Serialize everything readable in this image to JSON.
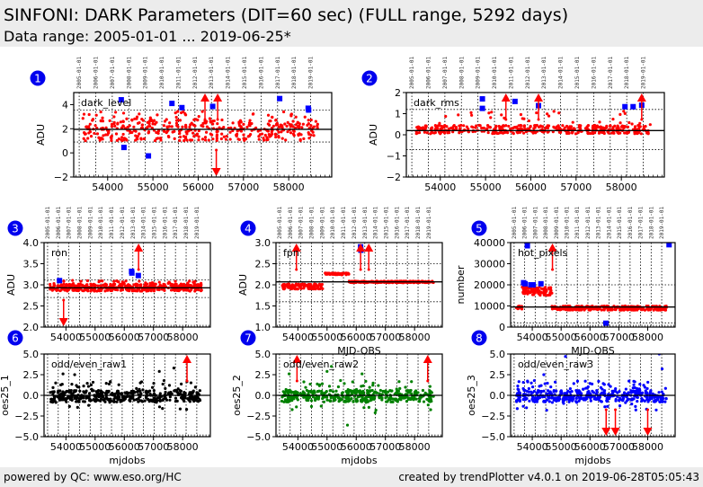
{
  "header": {
    "title": "SINFONI: DARK Parameters (DIT=60 sec) (FULL range, 5292 days)",
    "subtitle": "Data range: 2005-01-01 ... 2019-06-25*"
  },
  "footer": {
    "left": "powered by QC: www.eso.org/HC",
    "right": "created by trendPlotter v4.0.1 on 2019-06-28T05:05:43"
  },
  "colors": {
    "red": "#ff0000",
    "blue": "#0000ff",
    "black": "#000000",
    "green": "#008000",
    "badge": "#0000ee",
    "header_bg": "#ececec"
  },
  "chart_data": [
    {
      "id": 1,
      "type": "scatter",
      "label": "dark_level",
      "ylabel": "ADU",
      "xlabel": "",
      "ylim": [
        -2,
        5
      ],
      "yticks": [
        -2,
        0,
        2,
        4
      ],
      "xlim": [
        53250,
        58950
      ],
      "xticks": [
        54000,
        55000,
        56000,
        57000,
        58000
      ],
      "xtick_labels": [
        "54000",
        "55000",
        "56000",
        "57000",
        "58000"
      ],
      "top_dates": [
        "2005-01-01",
        "2006-01-01",
        "2007-01-01",
        "2008-01-01",
        "2009-01-01",
        "2010-01-01",
        "2011-01-01",
        "2012-01-01",
        "2013-01-01",
        "2014-01-01",
        "2015-01-01",
        "2016-01-01",
        "2017-01-01",
        "2018-01-01",
        "2019-01-01"
      ],
      "mean": 1.95,
      "limits": [
        0.9,
        3.55
      ],
      "point_color": "red",
      "band": [
        1.0,
        2.8
      ],
      "xrange": [
        53450,
        58650
      ],
      "outliers": [
        [
          54300,
          4.4
        ],
        [
          54360,
          0.45
        ],
        [
          54900,
          -0.25
        ],
        [
          55420,
          4.1
        ],
        [
          55640,
          3.75
        ],
        [
          56320,
          3.85
        ],
        [
          57800,
          4.5
        ],
        [
          58430,
          3.7
        ],
        [
          58440,
          3.55
        ]
      ],
      "arrows_up": [
        56150,
        56430
      ],
      "arrows_down": [
        56400
      ]
    },
    {
      "id": 2,
      "type": "scatter",
      "label": "dark_rms",
      "ylabel": "ADU",
      "xlabel": "",
      "ylim": [
        -2,
        2
      ],
      "yticks": [
        -2,
        -1,
        0,
        1,
        2
      ],
      "xlim": [
        53250,
        58950
      ],
      "xticks": [
        54000,
        55000,
        56000,
        57000,
        58000
      ],
      "xtick_labels": [
        "54000",
        "55000",
        "56000",
        "57000",
        "58000"
      ],
      "top_dates": [
        "2005-01-01",
        "2006-01-01",
        "2007-01-01",
        "2008-01-01",
        "2009-01-01",
        "2010-01-01",
        "2011-01-01",
        "2012-01-01",
        "2013-01-01",
        "2014-01-01",
        "2015-01-01",
        "2016-01-01",
        "2017-01-01",
        "2018-01-01",
        "2019-01-01"
      ],
      "mean": 0.2,
      "limits": [
        -0.7,
        1.2
      ],
      "point_color": "red",
      "band": [
        0.05,
        0.45
      ],
      "xrange": [
        53450,
        58650
      ],
      "outliers": [
        [
          54930,
          1.7
        ],
        [
          54930,
          1.25
        ],
        [
          55650,
          1.58
        ],
        [
          56170,
          1.38
        ],
        [
          58080,
          1.33
        ],
        [
          58260,
          1.33
        ],
        [
          58450,
          1.4
        ]
      ],
      "arrows_up": [
        55450,
        56170,
        58450
      ],
      "arrows_down": []
    },
    {
      "id": 3,
      "type": "scatter",
      "label": "ron",
      "ylabel": "ADU",
      "xlabel": "",
      "ylim": [
        2.0,
        4.0
      ],
      "yticks": [
        2.0,
        2.5,
        3.0,
        3.5,
        4.0
      ],
      "xlim": [
        53250,
        58950
      ],
      "xticks": [
        54000,
        55000,
        56000,
        57000,
        58000
      ],
      "xtick_labels": [
        "54000",
        "55000",
        "56000",
        "57000",
        "58000"
      ],
      "top_dates": [
        "2005-01-01",
        "2006-01-01",
        "2007-01-01",
        "2008-01-01",
        "2009-01-01",
        "2010-01-01",
        "2011-01-01",
        "2012-01-01",
        "2013-01-01",
        "2014-01-01",
        "2015-01-01",
        "2016-01-01",
        "2017-01-01",
        "2018-01-01",
        "2019-01-01"
      ],
      "mean": 2.93,
      "limits": [
        2.7,
        3.12
      ],
      "point_color": "red",
      "band": [
        2.85,
        3.02
      ],
      "xrange": [
        53450,
        58650
      ],
      "outliers": [
        [
          53780,
          3.1
        ],
        [
          56250,
          3.32
        ],
        [
          56260,
          3.28
        ],
        [
          56480,
          3.22
        ]
      ],
      "arrows_up": [
        56490
      ],
      "arrows_down": [
        53920
      ]
    },
    {
      "id": 4,
      "type": "scatter",
      "label": "fpn",
      "ylabel": "ADU",
      "xlabel": "MJD-OBS",
      "ylim": [
        1.0,
        3.0
      ],
      "yticks": [
        1.0,
        1.5,
        2.0,
        2.5,
        3.0
      ],
      "xlim": [
        53250,
        58950
      ],
      "xticks": [
        54000,
        55000,
        56000,
        57000,
        58000
      ],
      "xtick_labels": [
        "54000",
        "55000",
        "56000",
        "57000",
        "58000"
      ],
      "top_dates": [
        "2005-01-01",
        "2006-01-01",
        "2007-01-01",
        "2008-01-01",
        "2009-01-01",
        "2010-01-01",
        "2011-01-01",
        "2012-01-01",
        "2013-01-01",
        "2014-01-01",
        "2015-01-01",
        "2016-01-01",
        "2017-01-01",
        "2018-01-01",
        "2019-01-01"
      ],
      "mean": 2.07,
      "limits": [
        1.6,
        2.5
      ],
      "point_color": "red",
      "segments": [
        {
          "x": [
            53450,
            54850
          ],
          "y": [
            1.9,
            2.02
          ]
        },
        {
          "x": [
            54900,
            55750
          ],
          "y": [
            2.24,
            2.28
          ]
        },
        {
          "x": [
            55750,
            58650
          ],
          "y": [
            2.05,
            2.09
          ]
        }
      ],
      "outliers": [
        [
          56150,
          2.9
        ],
        [
          56160,
          2.82
        ]
      ],
      "arrows_up": [
        53950,
        56150,
        56430
      ],
      "arrows_down": []
    },
    {
      "id": 5,
      "type": "scatter",
      "label": "hot_pixels",
      "ylabel": "number",
      "xlabel": "MJD-OBS",
      "ylim": [
        0,
        40000
      ],
      "yticks": [
        0,
        10000,
        20000,
        30000,
        40000
      ],
      "xlim": [
        53250,
        58950
      ],
      "xticks": [
        54000,
        55000,
        56000,
        57000,
        58000
      ],
      "xtick_labels": [
        "54000",
        "55000",
        "56000",
        "57000",
        "58000"
      ],
      "top_dates": [
        "2005-01-01",
        "2006-01-01",
        "2007-01-01",
        "2008-01-01",
        "2009-01-01",
        "2010-01-01",
        "2011-01-01",
        "2012-01-01",
        "2013-01-01",
        "2014-01-01",
        "2015-01-01",
        "2016-01-01",
        "2017-01-01",
        "2018-01-01",
        "2019-01-01"
      ],
      "mean": 9500,
      "limits": [
        2000,
        20000
      ],
      "point_color": "red",
      "segments": [
        {
          "x": [
            53450,
            53650
          ],
          "y": [
            8500,
            10000
          ]
        },
        {
          "x": [
            53650,
            54680
          ],
          "y": [
            15000,
            19000
          ]
        },
        {
          "x": [
            54680,
            58650
          ],
          "y": [
            8000,
            10000
          ]
        }
      ],
      "outliers": [
        [
          53700,
          21000
        ],
        [
          53750,
          20500
        ],
        [
          53830,
          38500
        ],
        [
          53950,
          20000
        ],
        [
          54030,
          20000
        ],
        [
          54300,
          20500
        ],
        [
          56550,
          1800
        ],
        [
          58740,
          39000
        ]
      ],
      "arrows_up": [
        54700
      ],
      "arrows_down": []
    },
    {
      "id": 6,
      "type": "scatter",
      "label": "odd/even_raw1",
      "ylabel": "oes25_1",
      "xlabel": "mjdobs",
      "ylim": [
        -5.0,
        5.0
      ],
      "yticks": [
        -5.0,
        -2.5,
        0.0,
        2.5,
        5.0
      ],
      "xlim": [
        53250,
        58950
      ],
      "xticks": [
        54000,
        55000,
        56000,
        57000,
        58000
      ],
      "xtick_labels": [
        "54000",
        "55000",
        "56000",
        "57000",
        "58000"
      ],
      "top_dates": [],
      "mean": 0.0,
      "limits": null,
      "point_color": "black",
      "band": [
        -0.8,
        0.6
      ],
      "xrange": [
        53450,
        58650
      ],
      "scatter_extra": 1.6,
      "outliers": [
        [
          53900,
          2.6
        ],
        [
          54300,
          2.5
        ],
        [
          57200,
          2.9
        ],
        [
          57700,
          3.3
        ],
        [
          54400,
          -1.45
        ]
      ],
      "arrows_up": [
        58150
      ],
      "arrows_down": []
    },
    {
      "id": 7,
      "type": "scatter",
      "label": "odd/even_raw2",
      "ylabel": "oes25_2",
      "xlabel": "mjdobs",
      "ylim": [
        -5.0,
        5.0
      ],
      "yticks": [
        -5.0,
        -2.5,
        0.0,
        2.5,
        5.0
      ],
      "xlim": [
        53250,
        58950
      ],
      "xticks": [
        54000,
        55000,
        56000,
        57000,
        58000
      ],
      "xtick_labels": [
        "54000",
        "55000",
        "56000",
        "57000",
        "58000"
      ],
      "top_dates": [],
      "mean": 0.0,
      "limits": null,
      "point_color": "green",
      "band": [
        -0.8,
        0.6
      ],
      "xrange": [
        53450,
        58650
      ],
      "scatter_extra": 1.6,
      "outliers": [
        [
          53700,
          2.6
        ],
        [
          55000,
          2.9
        ],
        [
          55150,
          3.5
        ],
        [
          56200,
          2.6
        ],
        [
          56650,
          -2.1
        ],
        [
          55700,
          -3.6
        ],
        [
          53950,
          -1.4
        ],
        [
          54800,
          -1.3
        ]
      ],
      "arrows_up": [
        53970,
        58450
      ],
      "arrows_down": []
    },
    {
      "id": 8,
      "type": "scatter",
      "label": "odd/even_raw3",
      "ylabel": "oes25_3",
      "xlabel": "mjdobs",
      "ylim": [
        -5.0,
        5.0
      ],
      "yticks": [
        -5.0,
        -2.5,
        0.0,
        2.5,
        5.0
      ],
      "xlim": [
        53250,
        58950
      ],
      "xticks": [
        54000,
        55000,
        56000,
        57000,
        58000
      ],
      "xtick_labels": [
        "54000",
        "55000",
        "56000",
        "57000",
        "58000"
      ],
      "top_dates": [],
      "mean": 0.0,
      "limits": null,
      "point_color": "blue",
      "band": [
        -0.8,
        0.6
      ],
      "xrange": [
        53450,
        58650
      ],
      "scatter_extra": 1.6,
      "outliers": [
        [
          54400,
          2.5
        ],
        [
          55150,
          4.7
        ],
        [
          58500,
          3.2
        ],
        [
          58400,
          5.0
        ],
        [
          53480,
          -1.6
        ],
        [
          54500,
          -1.8
        ],
        [
          53800,
          -1.5
        ]
      ],
      "arrows_up": [],
      "arrows_down": [
        56560,
        56880,
        58000
      ]
    }
  ]
}
